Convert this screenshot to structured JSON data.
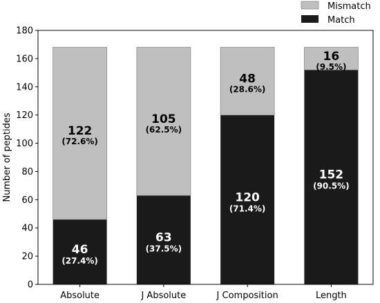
{
  "chart_data": {
    "type": "bar",
    "stacked": true,
    "categories": [
      "Absolute",
      "J Absolute",
      "J Composition",
      "Length"
    ],
    "series": [
      {
        "name": "Match",
        "color": "#1a1a1a",
        "values": [
          46,
          63,
          120,
          152
        ],
        "value_labels": [
          "46",
          "63",
          "120",
          "152"
        ],
        "percent_labels": [
          "(27.4%)",
          "(37.5%)",
          "(71.4%)",
          "(90.5%)"
        ],
        "label_color": "#ffffff"
      },
      {
        "name": "Mismatch",
        "color": "#bfbfbf",
        "values": [
          122,
          105,
          48,
          16
        ],
        "value_labels": [
          "122",
          "105",
          "48",
          "16"
        ],
        "percent_labels": [
          "(72.6%)",
          "(62.5%)",
          "(28.6%)",
          "(9.5%)"
        ],
        "label_color": "#000000"
      }
    ],
    "xlabel": "",
    "ylabel": "Number of peptides",
    "ylim": [
      0,
      180
    ],
    "yticks": [
      0,
      20,
      40,
      60,
      80,
      100,
      120,
      140,
      160,
      180
    ],
    "grid": false,
    "legend": {
      "placement": "outside-top-right",
      "entries": [
        "Mismatch",
        "Match"
      ]
    }
  }
}
